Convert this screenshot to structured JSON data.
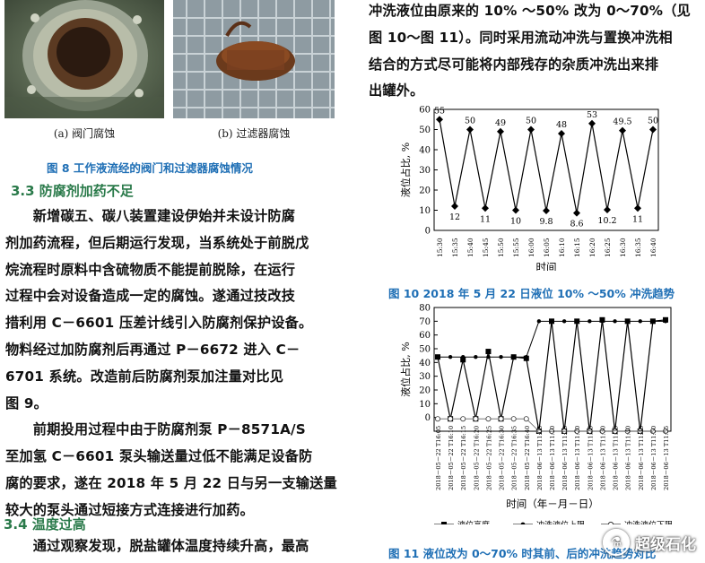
{
  "fig8": {
    "sub_a": "(a) 阀门腐蚀",
    "sub_b": "(b) 过滤器腐蚀",
    "caption": "图 8   工作液流经的阀门和过滤器腐蚀情况"
  },
  "sec33": {
    "heading": "3.3   防腐剂加药不足",
    "lines": [
      "　　新增碳五、碳八装置建设伊始并未设计防腐",
      "剂加药流程，但后期运行发现，当系统处于前脱戊",
      "烷流程时原料中含硫物质不能提前脱除，在运行",
      "过程中会对设备造成一定的腐蚀。遂通过技改技",
      "措利用 C－6601 压差计线引入防腐剂保护设备。",
      "物料经过加防腐剂后再通过 P－6672 进入 C－",
      "6701 系统。改造前后防腐剂泵加注量对比见",
      "图 9。",
      "　　前期投用过程中由于防腐剂泵 P－8571A/S",
      "至加氢 C－6601 泵头输送量过低不能满足设备防",
      "腐的要求，遂在 2018 年 5 月 22 日与另一支输送量",
      "较大的泵头通过短接方式连接进行加药。"
    ]
  },
  "sec34": {
    "heading": "3.4   温度过高",
    "lines": [
      "　　通过观察发现，脱盐罐体温度持续升高，最高"
    ]
  },
  "right_para": {
    "lines": [
      "冲洗液位由原来的 10% ～50% 改为 0～70%（见",
      "图 10～图 11）。同时采用流动冲洗与置换冲洗相",
      "结合的方式尽可能将内部残存的杂质冲洗出来排",
      "出罐外。"
    ]
  },
  "chart_data": [
    {
      "type": "line",
      "ylabel": "液位占比, %",
      "xlabel": "时间",
      "ylim": [
        0,
        60
      ],
      "yticks": [
        0,
        10,
        20,
        30,
        40,
        50,
        60
      ],
      "categories": [
        "15:30",
        "15:35",
        "15:40",
        "15:45",
        "15:50",
        "15:55",
        "16:00",
        "16:05",
        "16:10",
        "16:15",
        "16:20",
        "16:25",
        "16:30",
        "16:35",
        "16:40"
      ],
      "values": [
        55,
        12,
        50,
        11,
        49,
        10,
        50,
        9.8,
        48,
        8.6,
        53,
        10.2,
        49.5,
        11,
        50
      ],
      "labels": [
        "55",
        "12",
        "50",
        "11",
        "49",
        "10",
        "50",
        "9.8",
        "48",
        "8.6",
        "53",
        "10.2",
        "49.5",
        "11",
        "50"
      ],
      "caption": "图 10   2018 年 5 月 22 日液位 10% ～50% 冲洗趋势"
    },
    {
      "type": "line",
      "ylabel": "液位占比, %",
      "xlabel": "时间（年－月－日）",
      "ylim": [
        -10,
        80
      ],
      "yticks": [
        0,
        10,
        20,
        30,
        40,
        50,
        60,
        70,
        80
      ],
      "categories": [
        "2018－05－22 T16:05",
        "2018－05－22 T16:10",
        "2018－05－22 T16:15",
        "2018－05－22 T16:20",
        "2018－05－22 T16:25",
        "2018－05－22 T16:30",
        "2018－05－22 T16:35",
        "2018－05－22 T16:40",
        "2018－06－13 T11:05",
        "2018－06－13 T11:10",
        "2018－06－13 T11:15",
        "2018－06－13 T11:20",
        "2018－06－13 T11:25",
        "2018－06－13 T11:30",
        "2018－06－13 T11:35",
        "2018－06－13 T11:40",
        "2018－06－13 T11:45",
        "2018－06－13 T11:50",
        "2018－06－13 T11:55"
      ],
      "series": [
        {
          "name": "液位高度",
          "marker": "square",
          "values": [
            44,
            -1,
            42,
            -1,
            48,
            -1,
            44,
            43,
            -10,
            70,
            -10,
            70,
            -10,
            71,
            -10,
            70,
            -10,
            70,
            71
          ]
        },
        {
          "name": "冲洗液位上限",
          "marker": "dot",
          "values": [
            44,
            44,
            44,
            44,
            44,
            44,
            44,
            44,
            70,
            70,
            70,
            70,
            70,
            70,
            70,
            70,
            70,
            70,
            70
          ]
        },
        {
          "name": "冲洗液位下限",
          "marker": "circle",
          "values": [
            -1,
            -1,
            -1,
            -1,
            -1,
            -1,
            -1,
            -1,
            -10,
            -10,
            -10,
            -10,
            -10,
            -10,
            -10,
            -10,
            -10,
            -10,
            -10
          ]
        }
      ],
      "caption": "图 11   液位改为 0～70% 时其前、后的冲洗趋势对比"
    }
  ],
  "watermark": {
    "text": "超级石化",
    "icon": "chemistry-logo-icon"
  },
  "colors": {
    "caption": "#1f6fb5",
    "section": "#2a7a4a"
  }
}
